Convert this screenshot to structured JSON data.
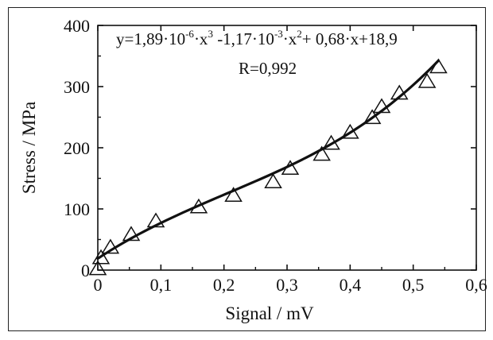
{
  "chart_data": {
    "type": "scatter",
    "xlabel": "Signal / mV",
    "ylabel": "Stress / MPa",
    "xlim": [
      0,
      0.6
    ],
    "ylim": [
      0,
      400
    ],
    "x_ticks": [
      "0",
      "0,1",
      "0,2",
      "0,3",
      "0,4",
      "0,5",
      "0,6"
    ],
    "y_ticks": [
      "0",
      "100",
      "200",
      "300",
      "400"
    ],
    "grid": false,
    "marker": "open-triangle",
    "points": [
      {
        "x": 0.0,
        "y": 2
      },
      {
        "x": 0.005,
        "y": 20
      },
      {
        "x": 0.02,
        "y": 37
      },
      {
        "x": 0.053,
        "y": 58
      },
      {
        "x": 0.092,
        "y": 80
      },
      {
        "x": 0.16,
        "y": 103
      },
      {
        "x": 0.215,
        "y": 122
      },
      {
        "x": 0.278,
        "y": 144
      },
      {
        "x": 0.305,
        "y": 166
      },
      {
        "x": 0.355,
        "y": 189
      },
      {
        "x": 0.37,
        "y": 207
      },
      {
        "x": 0.4,
        "y": 225
      },
      {
        "x": 0.435,
        "y": 249
      },
      {
        "x": 0.45,
        "y": 267
      },
      {
        "x": 0.478,
        "y": 289
      },
      {
        "x": 0.522,
        "y": 308
      },
      {
        "x": 0.54,
        "y": 332
      }
    ],
    "fit": {
      "type": "cubic",
      "coefficients": [
        18.9,
        0.68,
        -0.00117,
        1.89e-06
      ],
      "x_range": [
        0,
        0.54
      ],
      "equation": {
        "a": "y=1,89·10",
        "a_exp": "-6",
        "b": "·x",
        "b_exp": "3",
        "c": " -1,17·10",
        "c_exp": "-3",
        "d": "·x",
        "d_exp": "2",
        "e": "+ 0,68·x+18,9"
      },
      "r_label": "R=0,992"
    }
  }
}
